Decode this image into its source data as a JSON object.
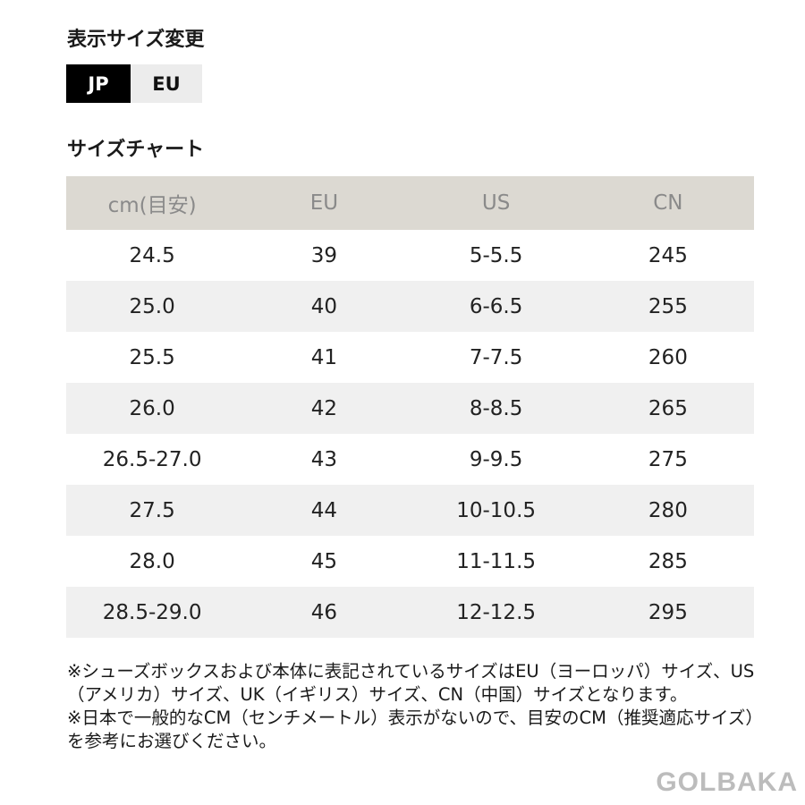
{
  "header": {
    "title": "表示サイズ変更",
    "toggle": [
      "JP",
      "EU"
    ],
    "chart_title": "サイズチャート"
  },
  "table": {
    "columns": [
      "cm(目安)",
      "EU",
      "US",
      "CN"
    ],
    "rows": [
      [
        "24.5",
        "39",
        "5-5.5",
        "245"
      ],
      [
        "25.0",
        "40",
        "6-6.5",
        "255"
      ],
      [
        "25.5",
        "41",
        "7-7.5",
        "260"
      ],
      [
        "26.0",
        "42",
        "8-8.5",
        "265"
      ],
      [
        "26.5-27.0",
        "43",
        "9-9.5",
        "275"
      ],
      [
        "27.5",
        "44",
        "10-10.5",
        "280"
      ],
      [
        "28.0",
        "45",
        "11-11.5",
        "285"
      ],
      [
        "28.5-29.0",
        "46",
        "12-12.5",
        "295"
      ]
    ]
  },
  "notes": [
    "※シューズボックスおよび本体に表記されているサイズはEU（ヨーロッパ）サイズ、US（アメリカ）サイズ、UK（イギリス）サイズ、CN（中国）サイズとなります。",
    "※日本で一般的なCM（センチメートル）表示がないので、目安のCM（推奨適応サイズ）を参考にお選びください。"
  ],
  "watermark": "GOLBAKA"
}
